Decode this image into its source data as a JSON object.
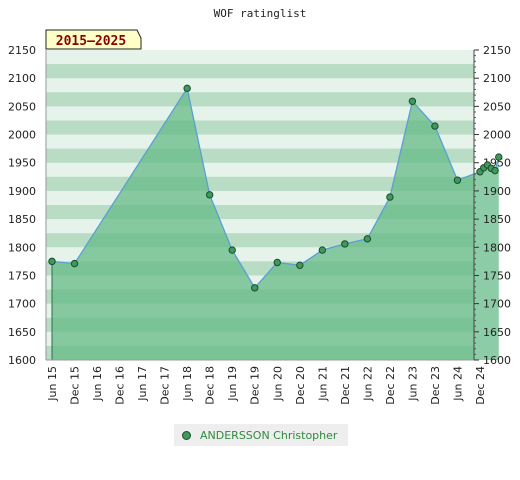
{
  "chart_data": {
    "type": "area",
    "title": "WOF ratinglist",
    "period_badge": "2015–2025",
    "ylim": [
      1600,
      2150
    ],
    "y_ticks": [
      1600,
      1650,
      1700,
      1750,
      1800,
      1850,
      1900,
      1950,
      2000,
      2050,
      2100,
      2150
    ],
    "x_tick_labels": [
      "Jun 15",
      "Dec 15",
      "Jun 16",
      "Dec 16",
      "Jun 17",
      "Dec 17",
      "Jun 18",
      "Dec 18",
      "Jun 19",
      "Dec 19",
      "Jun 20",
      "Dec 20",
      "Jun 21",
      "Dec 21",
      "Jun 22",
      "Dec 22",
      "Jun 23",
      "Dec 23",
      "Jun 24",
      "Dec 24"
    ],
    "grid": true,
    "legend_position": "bottom-center",
    "colors": {
      "line": "#5a9fd4",
      "fill": "#66bb88",
      "marker": "#3d9a5c",
      "band_dark": "#b8dcc4",
      "band_light": "#e6f3ea",
      "badge_bg": "#ffffc8"
    },
    "series": [
      {
        "name": "ANDERSSON Christopher",
        "points": [
          {
            "x": "2015-06",
            "y": 1775
          },
          {
            "x": "2015-12",
            "y": 1771
          },
          {
            "x": "2018-06",
            "y": 2082
          },
          {
            "x": "2018-12",
            "y": 1893
          },
          {
            "x": "2019-06",
            "y": 1795
          },
          {
            "x": "2019-12",
            "y": 1728
          },
          {
            "x": "2020-06",
            "y": 1773
          },
          {
            "x": "2020-12",
            "y": 1768
          },
          {
            "x": "2021-06",
            "y": 1795
          },
          {
            "x": "2021-12",
            "y": 1806
          },
          {
            "x": "2022-06",
            "y": 1815
          },
          {
            "x": "2022-12",
            "y": 1889
          },
          {
            "x": "2023-06",
            "y": 2059
          },
          {
            "x": "2023-12",
            "y": 2015
          },
          {
            "x": "2024-06",
            "y": 1919
          },
          {
            "x": "2024-12",
            "y": 1934
          },
          {
            "x": "2025-01",
            "y": 1941
          },
          {
            "x": "2025-02",
            "y": 1946
          },
          {
            "x": "2025-03",
            "y": 1940
          },
          {
            "x": "2025-04",
            "y": 1936
          },
          {
            "x": "2025-05",
            "y": 1960
          }
        ]
      }
    ]
  }
}
